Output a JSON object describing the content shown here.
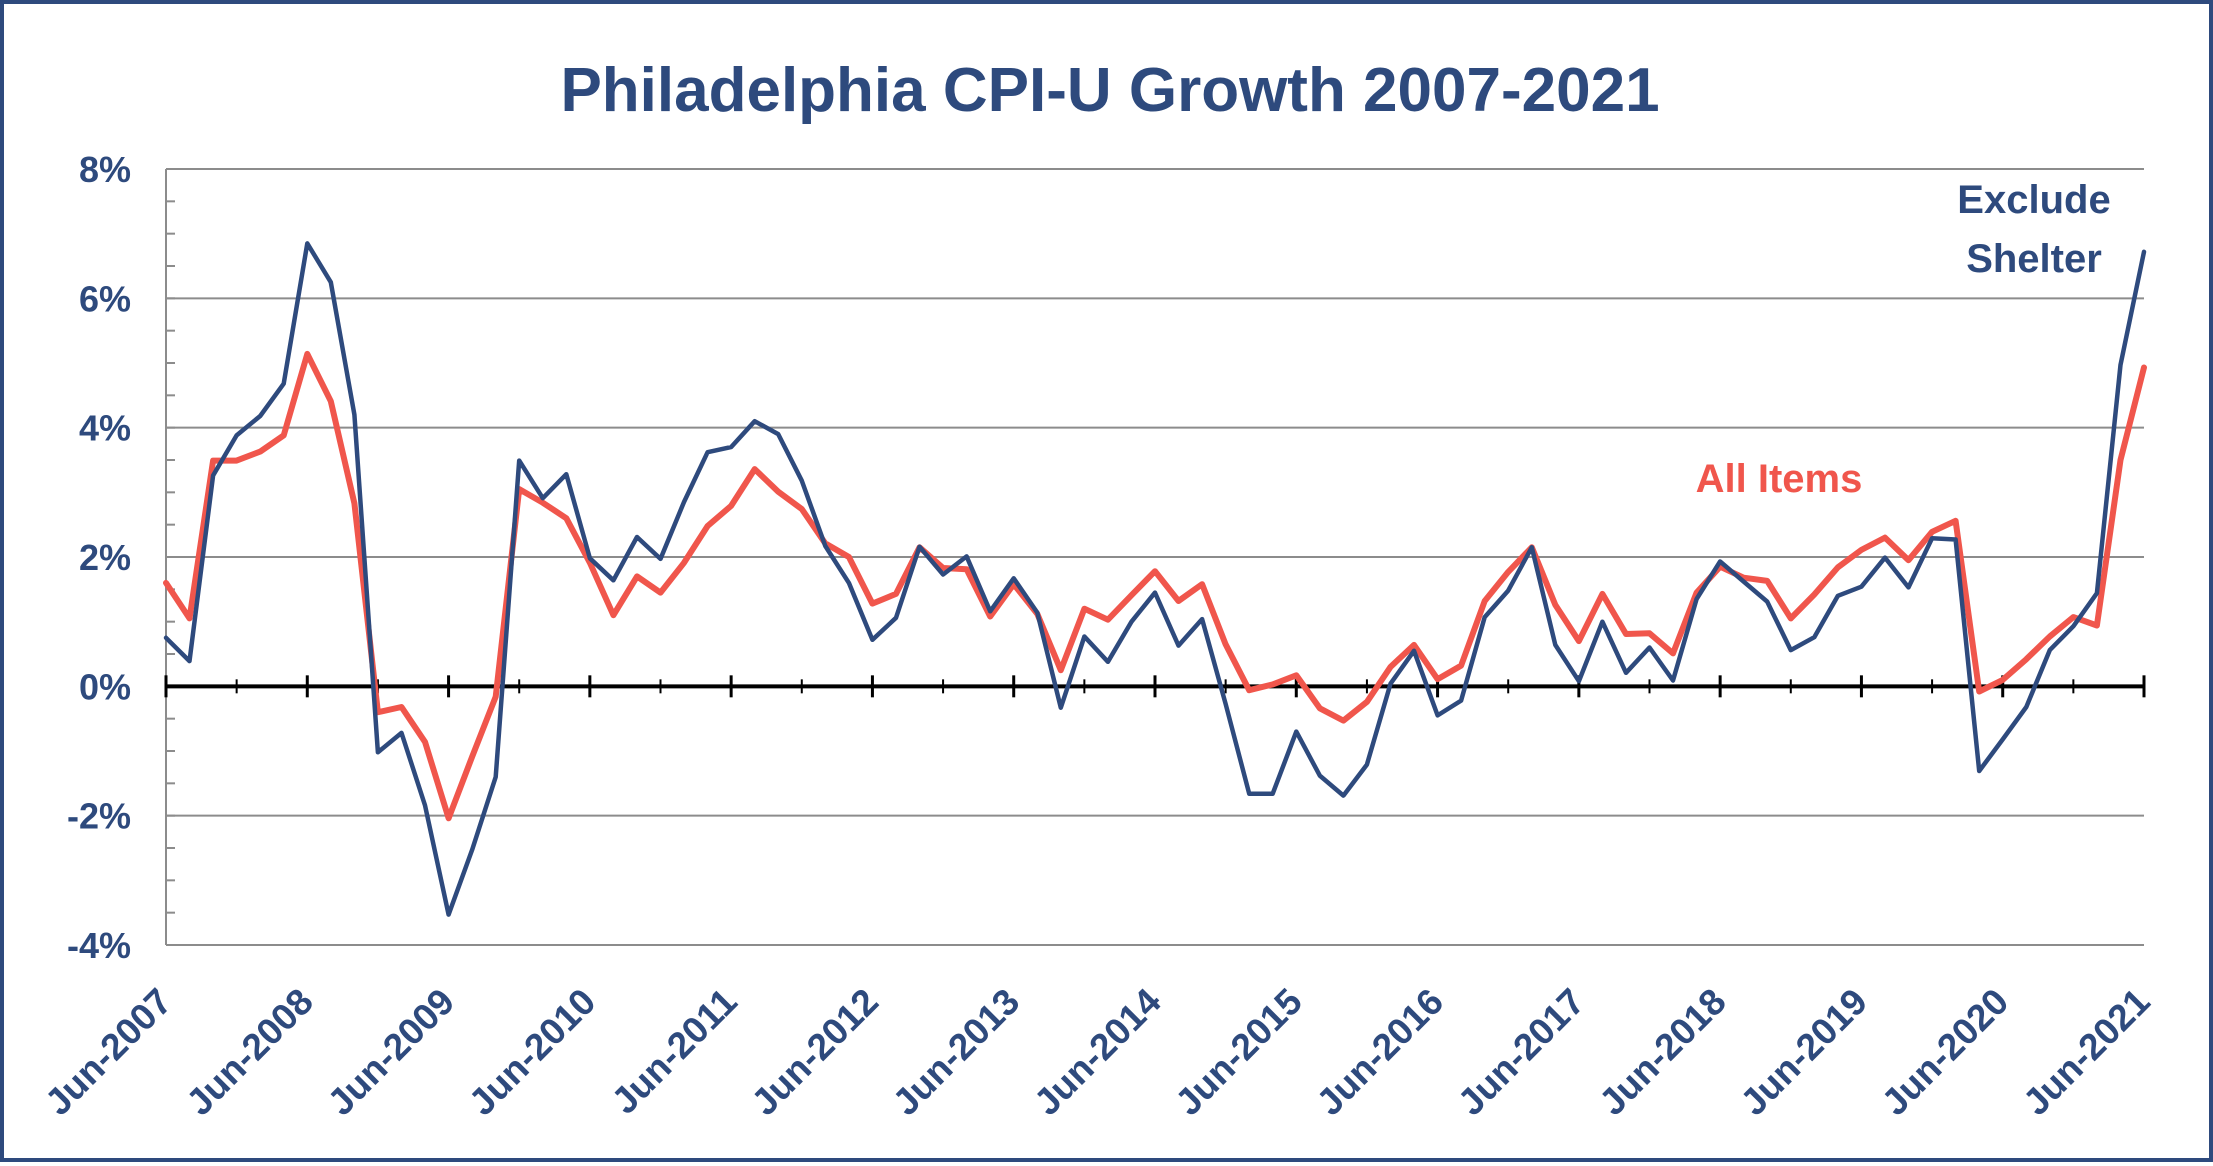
{
  "chart_data": {
    "type": "line",
    "title": "Philadelphia CPI-U Growth 2007-2021",
    "xlabel": "",
    "ylabel": "",
    "ylim": [
      -4,
      8
    ],
    "y_ticks": [
      8,
      6,
      4,
      2,
      0,
      -2,
      -4
    ],
    "y_tick_labels": [
      "8%",
      "6%",
      "4%",
      "2%",
      "0%",
      "-2%",
      "-4%"
    ],
    "x_range": [
      2007.5,
      2021.5
    ],
    "x_ticks": [
      2007.5,
      2008.5,
      2009.5,
      2010.5,
      2011.5,
      2012.5,
      2013.5,
      2014.5,
      2015.5,
      2016.5,
      2017.5,
      2018.5,
      2019.5,
      2020.5,
      2021.5
    ],
    "x_tick_labels": [
      "Jun-2007",
      "Jun-2008",
      "Jun-2009",
      "Jun-2010",
      "Jun-2011",
      "Jun-2012",
      "Jun-2013",
      "Jun-2014",
      "Jun-2015",
      "Jun-2016",
      "Jun-2017",
      "Jun-2018",
      "Jun-2019",
      "Jun-2020",
      "Jun-2021"
    ],
    "grid": true,
    "colors": {
      "frame": "#2E4A7D",
      "text": "#2E4A7D",
      "exclude_shelter": "#2E4A7D",
      "all_items": "#F0564C",
      "grid": "#8C8C8C",
      "zero_line": "#000000"
    },
    "series": [
      {
        "name": "Exclude Shelter",
        "label_lines": [
          "Exclude",
          "Shelter"
        ],
        "color": "#2E4A7D",
        "values": [
          0.75,
          0.39,
          3.26,
          3.88,
          4.18,
          4.68,
          6.85,
          6.25,
          4.2,
          -1.02,
          -0.72,
          -1.84,
          -3.53,
          -2.53,
          -1.4,
          3.49,
          2.91,
          3.28,
          1.98,
          1.64,
          2.31,
          1.97,
          2.85,
          3.62,
          3.7,
          4.1,
          3.9,
          3.18,
          2.17,
          1.6,
          0.72,
          1.06,
          2.16,
          1.73,
          2.01,
          1.16,
          1.67,
          1.14,
          -0.33,
          0.77,
          0.38,
          1.0,
          1.45,
          0.63,
          1.04,
          -0.27,
          -1.66,
          -1.66,
          -0.7,
          -1.38,
          -1.69,
          -1.21,
          0.04,
          0.55,
          -0.45,
          -0.22,
          1.07,
          1.48,
          2.15,
          0.64,
          0.08,
          1.0,
          0.21,
          0.6,
          0.09,
          1.35,
          1.93,
          1.62,
          1.31,
          0.56,
          0.76,
          1.4,
          1.54,
          1.99,
          1.53,
          2.29,
          2.27,
          -1.31,
          -0.82,
          -0.32,
          0.56,
          0.93,
          1.44,
          4.97,
          6.72
        ]
      },
      {
        "name": "All Items",
        "label_lines": [
          "All Items"
        ],
        "color": "#F0564C",
        "values": [
          1.6,
          1.05,
          3.49,
          3.49,
          3.63,
          3.88,
          5.14,
          4.41,
          2.83,
          -0.4,
          -0.32,
          -0.86,
          -2.04,
          -1.09,
          -0.16,
          3.05,
          2.84,
          2.6,
          1.91,
          1.1,
          1.7,
          1.45,
          1.91,
          2.48,
          2.79,
          3.36,
          3.01,
          2.74,
          2.21,
          2.0,
          1.28,
          1.43,
          2.15,
          1.83,
          1.81,
          1.08,
          1.58,
          1.12,
          0.25,
          1.2,
          1.03,
          1.41,
          1.78,
          1.32,
          1.58,
          0.65,
          -0.06,
          0.03,
          0.17,
          -0.34,
          -0.53,
          -0.24,
          0.3,
          0.64,
          0.11,
          0.32,
          1.32,
          1.77,
          2.15,
          1.26,
          0.7,
          1.43,
          0.81,
          0.82,
          0.51,
          1.45,
          1.85,
          1.68,
          1.63,
          1.05,
          1.42,
          1.84,
          2.11,
          2.3,
          1.95,
          2.39,
          2.56,
          -0.08,
          0.1,
          0.42,
          0.77,
          1.07,
          0.94,
          3.5,
          4.93
        ]
      }
    ]
  }
}
